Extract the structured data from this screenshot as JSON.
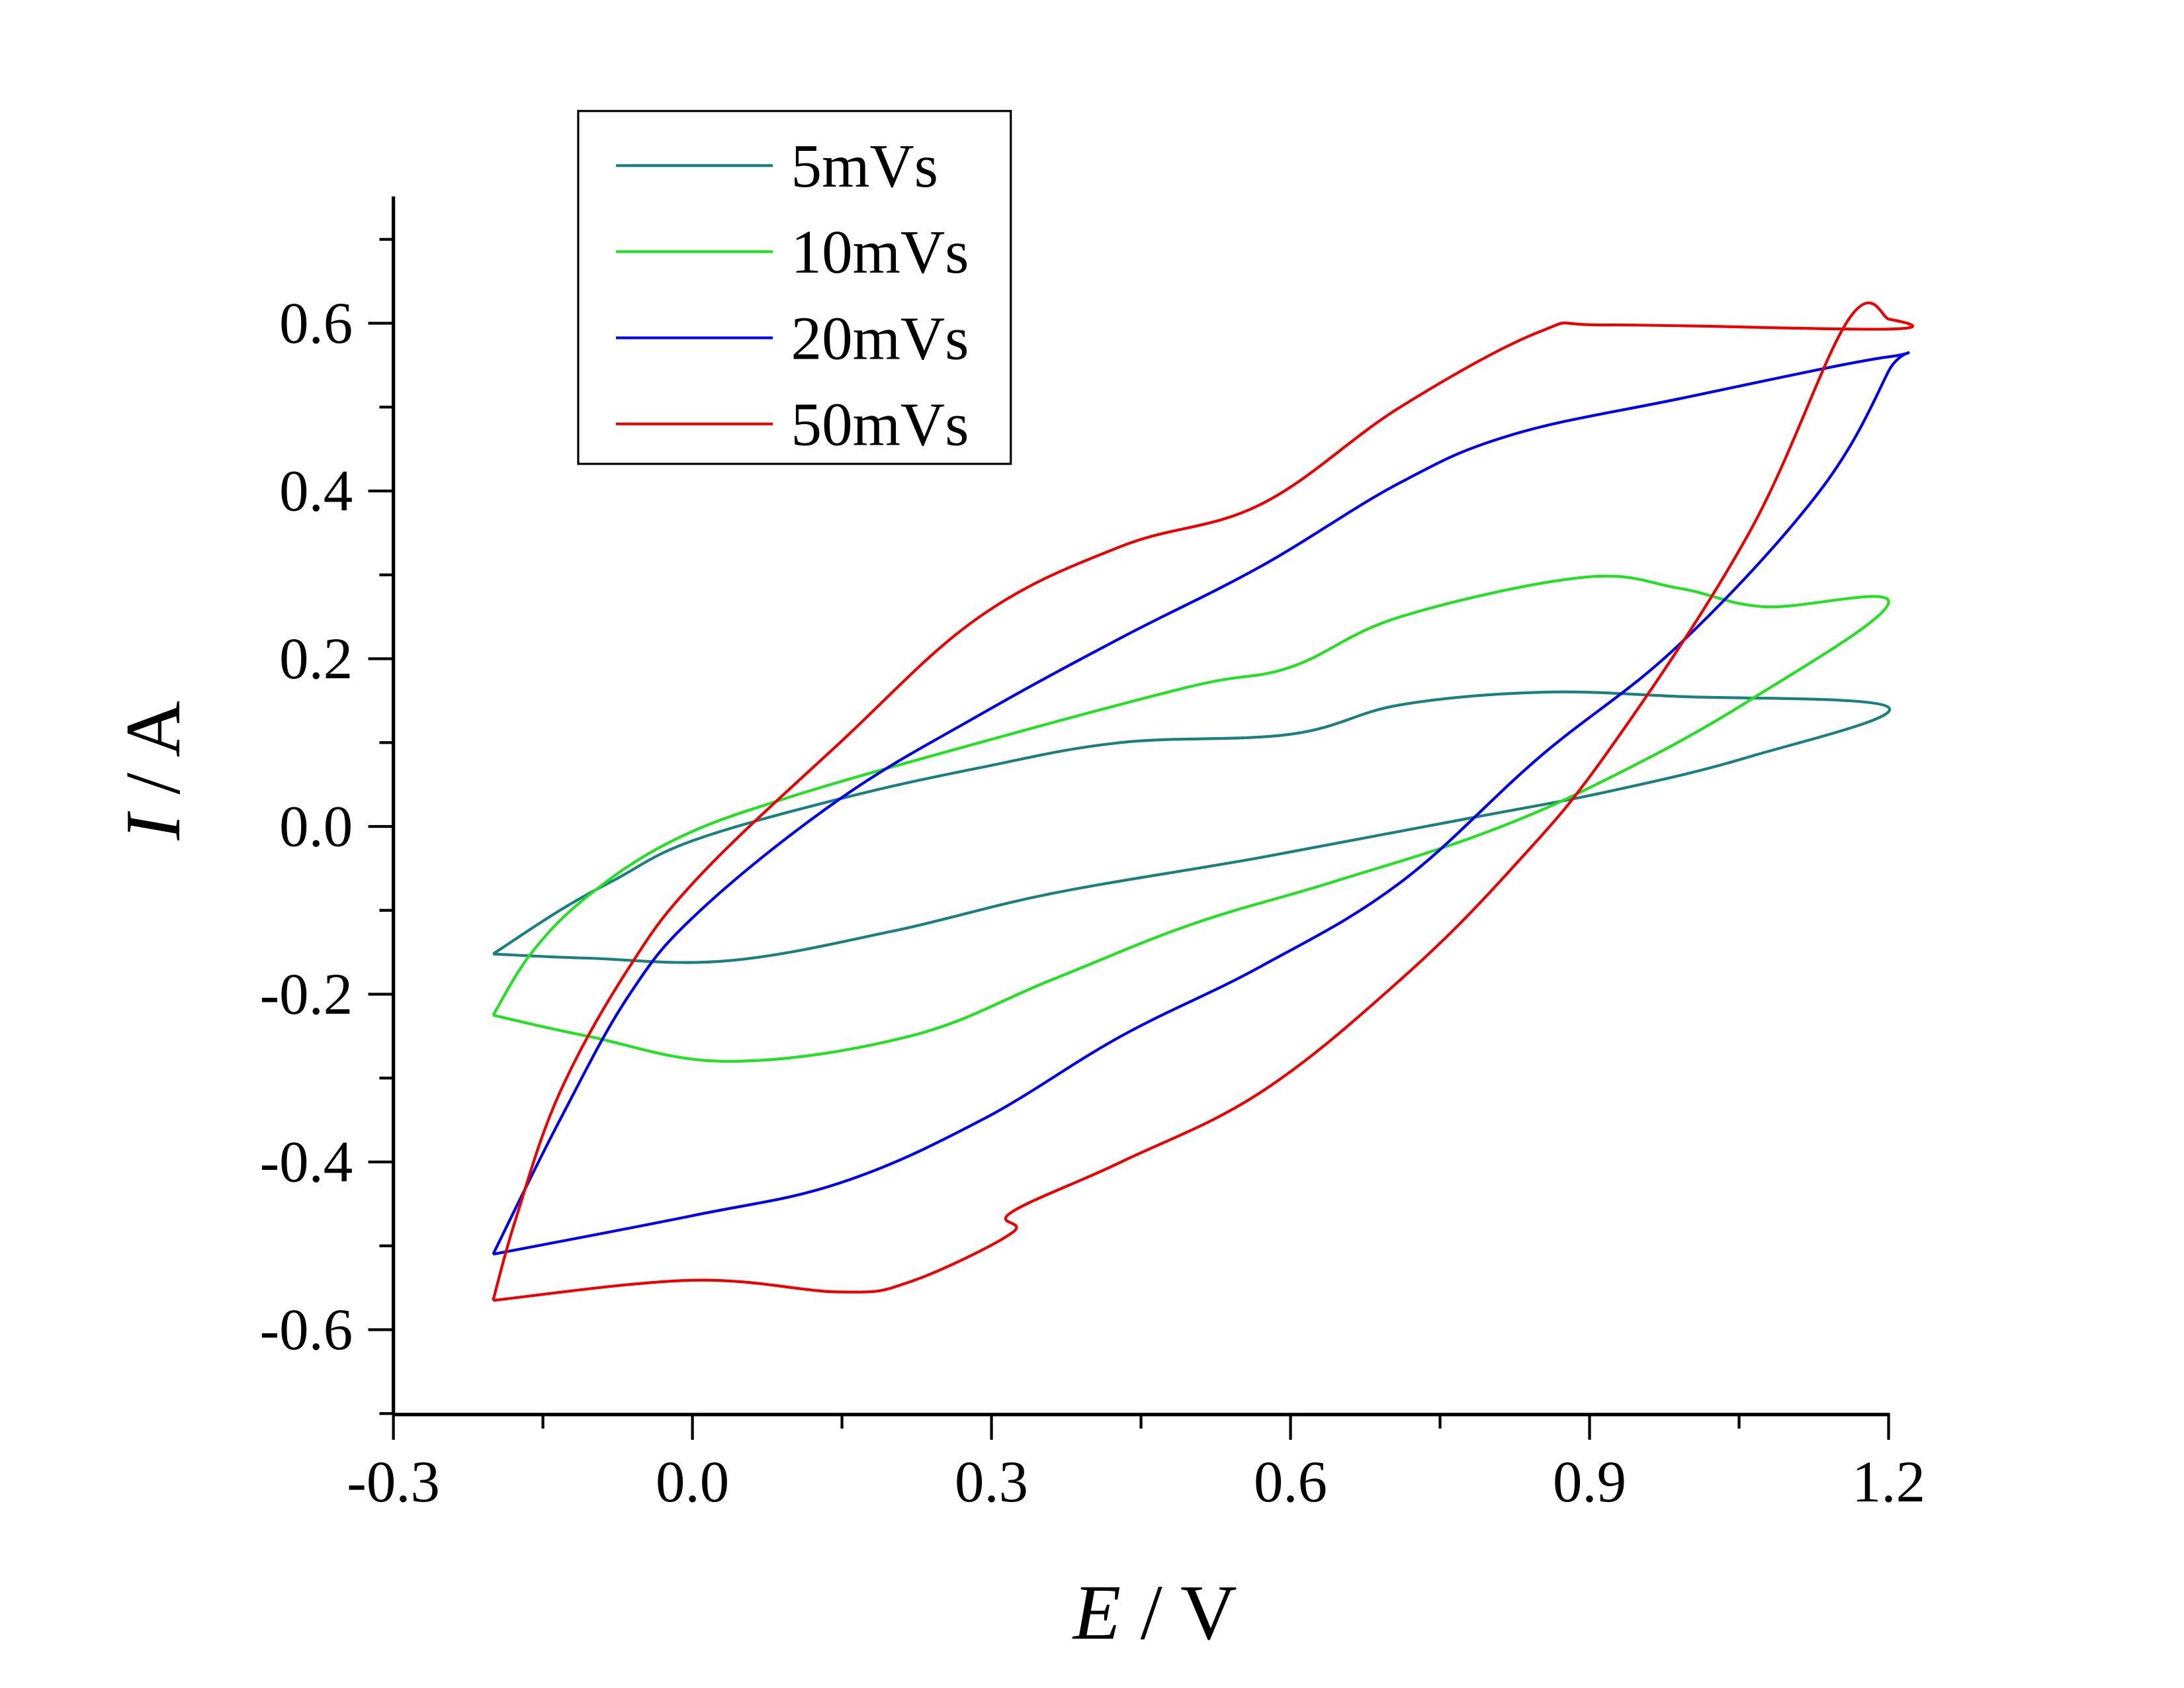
{
  "chart_data": {
    "type": "line",
    "title": "",
    "xlabel": {
      "italic": "E",
      "rest": " / V"
    },
    "ylabel": {
      "italic": "I",
      "rest": " / A"
    },
    "xlim": [
      -0.3,
      1.2
    ],
    "ylim": [
      -0.7,
      0.75
    ],
    "xticks": [
      "-0.3",
      "0.0",
      "0.3",
      "0.6",
      "0.9",
      "1.2"
    ],
    "xtick_values": [
      -0.3,
      0.0,
      0.3,
      0.6,
      0.9,
      1.2
    ],
    "yticks": [
      "-0.6",
      "-0.4",
      "-0.2",
      "0.0",
      "0.2",
      "0.4",
      "0.6"
    ],
    "ytick_values": [
      -0.6,
      -0.4,
      -0.2,
      0.0,
      0.2,
      0.4,
      0.6
    ],
    "grid": false,
    "legend_position": "top-left",
    "series": [
      {
        "name": "5mVs",
        "color": "#1a7f7f",
        "points": [
          [
            -0.2,
            -0.152
          ],
          [
            -0.133,
            -0.1
          ],
          [
            -0.077,
            -0.063
          ],
          [
            0.0,
            -0.017
          ],
          [
            0.148,
            0.033
          ],
          [
            0.288,
            0.07
          ],
          [
            0.429,
            0.1
          ],
          [
            0.6,
            0.11
          ],
          [
            0.71,
            0.145
          ],
          [
            0.85,
            0.16
          ],
          [
            0.99,
            0.155
          ],
          [
            1.2,
            0.142
          ],
          [
            1.06,
            0.083
          ],
          [
            0.92,
            0.042
          ],
          [
            0.78,
            0.01
          ],
          [
            0.57,
            -0.037
          ],
          [
            0.36,
            -0.08
          ],
          [
            0.2,
            -0.125
          ],
          [
            0.036,
            -0.16
          ],
          [
            -0.105,
            -0.157
          ],
          [
            -0.2,
            -0.152
          ]
        ]
      },
      {
        "name": "10mVs",
        "color": "#22e022",
        "points": [
          [
            -0.2,
            -0.225
          ],
          [
            -0.161,
            -0.15
          ],
          [
            -0.105,
            -0.083
          ],
          [
            -0.02,
            -0.017
          ],
          [
            0.092,
            0.033
          ],
          [
            0.288,
            0.1
          ],
          [
            0.5,
            0.167
          ],
          [
            0.6,
            0.19
          ],
          [
            0.71,
            0.25
          ],
          [
            0.893,
            0.297
          ],
          [
            0.99,
            0.284
          ],
          [
            1.075,
            0.262
          ],
          [
            1.2,
            0.267
          ],
          [
            1.06,
            0.15
          ],
          [
            0.92,
            0.058
          ],
          [
            0.794,
            -0.008
          ],
          [
            0.64,
            -0.067
          ],
          [
            0.5,
            -0.117
          ],
          [
            0.36,
            -0.183
          ],
          [
            0.218,
            -0.25
          ],
          [
            0.036,
            -0.28
          ],
          [
            -0.105,
            -0.25
          ],
          [
            -0.2,
            -0.225
          ]
        ]
      },
      {
        "name": "20mVs",
        "color": "#0000ee",
        "points": [
          [
            -0.2,
            -0.51
          ],
          [
            -0.133,
            -0.35
          ],
          [
            -0.063,
            -0.2
          ],
          [
            0.008,
            -0.1
          ],
          [
            0.148,
            0.033
          ],
          [
            0.288,
            0.133
          ],
          [
            0.43,
            0.225
          ],
          [
            0.57,
            0.31
          ],
          [
            0.71,
            0.41
          ],
          [
            0.822,
            0.467
          ],
          [
            0.99,
            0.51
          ],
          [
            1.2,
            0.56
          ],
          [
            1.2,
            0.543
          ],
          [
            1.131,
            0.4
          ],
          [
            0.99,
            0.217
          ],
          [
            0.85,
            0.083
          ],
          [
            0.71,
            -0.067
          ],
          [
            0.57,
            -0.167
          ],
          [
            0.43,
            -0.25
          ],
          [
            0.29,
            -0.35
          ],
          [
            0.148,
            -0.425
          ],
          [
            0.0,
            -0.464
          ],
          [
            -0.2,
            -0.51
          ]
        ]
      },
      {
        "name": "50mVs",
        "color": "#ee0000",
        "points": [
          [
            -0.2,
            -0.565
          ],
          [
            -0.177,
            -0.467
          ],
          [
            -0.133,
            -0.317
          ],
          [
            -0.063,
            -0.167
          ],
          [
            0.008,
            -0.058
          ],
          [
            0.148,
            0.1
          ],
          [
            0.288,
            0.25
          ],
          [
            0.43,
            0.334
          ],
          [
            0.57,
            0.384
          ],
          [
            0.71,
            0.5
          ],
          [
            0.85,
            0.59
          ],
          [
            0.92,
            0.598
          ],
          [
            1.2,
            0.593
          ],
          [
            1.2,
            0.605
          ],
          [
            1.159,
            0.603
          ],
          [
            1.06,
            0.35
          ],
          [
            0.92,
            0.092
          ],
          [
            0.822,
            -0.05
          ],
          [
            0.71,
            -0.183
          ],
          [
            0.57,
            -0.317
          ],
          [
            0.43,
            -0.4
          ],
          [
            0.32,
            -0.46
          ],
          [
            0.32,
            -0.485
          ],
          [
            0.218,
            -0.543
          ],
          [
            0.148,
            -0.555
          ],
          [
            0.0,
            -0.541
          ],
          [
            -0.2,
            -0.565
          ]
        ]
      }
    ]
  }
}
